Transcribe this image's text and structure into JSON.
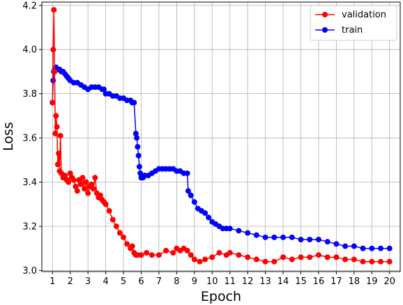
{
  "chart_data": {
    "type": "line",
    "xlabel": "Epoch",
    "ylabel": "Loss",
    "xlim": [
      0.4,
      20.6
    ],
    "ylim": [
      2.995,
      4.215
    ],
    "xticks": [
      1,
      2,
      3,
      4,
      5,
      6,
      7,
      8,
      9,
      10,
      11,
      12,
      13,
      14,
      15,
      16,
      17,
      18,
      19,
      20
    ],
    "yticks": [
      3.0,
      3.2,
      3.4,
      3.6,
      3.8,
      4.0,
      4.2
    ],
    "ytick_labels": [
      "3.0",
      "3.2",
      "3.4",
      "3.6",
      "3.8",
      "4.0",
      "4.2"
    ],
    "grid": true,
    "legend_position": "top-right",
    "series": [
      {
        "name": "validation",
        "color": "#ff0000",
        "marker": "circle",
        "x": [
          1.0,
          1.04,
          1.08,
          1.12,
          1.16,
          1.2,
          1.25,
          1.3,
          1.35,
          1.4,
          1.45,
          1.5,
          1.6,
          1.7,
          1.8,
          1.9,
          2.0,
          2.1,
          2.2,
          2.3,
          2.4,
          2.5,
          2.6,
          2.7,
          2.8,
          2.9,
          3.0,
          3.1,
          3.2,
          3.3,
          3.4,
          3.5,
          3.6,
          3.7,
          3.8,
          3.9,
          4.0,
          4.2,
          4.4,
          4.6,
          4.8,
          5.0,
          5.2,
          5.4,
          5.5,
          5.6,
          5.7,
          5.8,
          6.0,
          6.3,
          6.6,
          7.0,
          7.4,
          7.8,
          8.0,
          8.2,
          8.4,
          8.6,
          8.8,
          9.0,
          9.3,
          9.6,
          10.0,
          10.4,
          10.8,
          11.0,
          11.5,
          12.0,
          12.5,
          13.0,
          13.5,
          14.0,
          14.5,
          15.0,
          15.5,
          16.0,
          16.5,
          17.0,
          17.5,
          18.0,
          18.5,
          19.0,
          19.5,
          20.0
        ],
        "y": [
          3.76,
          4.0,
          4.18,
          3.9,
          3.62,
          3.7,
          3.65,
          3.48,
          3.53,
          3.45,
          3.61,
          3.44,
          3.42,
          3.43,
          3.41,
          3.4,
          3.44,
          3.42,
          3.41,
          3.38,
          3.36,
          3.41,
          3.39,
          3.42,
          3.37,
          3.4,
          3.35,
          3.38,
          3.39,
          3.37,
          3.42,
          3.35,
          3.33,
          3.34,
          3.32,
          3.31,
          3.3,
          3.27,
          3.23,
          3.2,
          3.17,
          3.15,
          3.12,
          3.1,
          3.11,
          3.08,
          3.07,
          3.07,
          3.07,
          3.08,
          3.07,
          3.07,
          3.09,
          3.08,
          3.1,
          3.09,
          3.1,
          3.09,
          3.07,
          3.05,
          3.04,
          3.05,
          3.06,
          3.08,
          3.07,
          3.08,
          3.07,
          3.06,
          3.05,
          3.04,
          3.04,
          3.06,
          3.05,
          3.06,
          3.06,
          3.07,
          3.06,
          3.06,
          3.05,
          3.05,
          3.04,
          3.04,
          3.04,
          3.04
        ]
      },
      {
        "name": "train",
        "color": "#0000ff",
        "marker": "circle",
        "x": [
          1.0,
          1.04,
          1.08,
          1.12,
          1.16,
          1.2,
          1.3,
          1.4,
          1.5,
          1.6,
          1.7,
          1.8,
          1.9,
          2.0,
          2.2,
          2.4,
          2.6,
          2.8,
          3.0,
          3.2,
          3.4,
          3.6,
          3.8,
          3.9,
          4.0,
          4.2,
          4.4,
          4.6,
          4.8,
          5.0,
          5.2,
          5.4,
          5.5,
          5.6,
          5.7,
          5.75,
          5.8,
          5.85,
          5.9,
          5.95,
          6.0,
          6.1,
          6.2,
          6.4,
          6.6,
          6.8,
          7.0,
          7.2,
          7.4,
          7.6,
          7.8,
          8.0,
          8.2,
          8.4,
          8.6,
          8.65,
          8.8,
          9.0,
          9.2,
          9.4,
          9.6,
          9.8,
          10.0,
          10.2,
          10.4,
          10.6,
          10.8,
          11.0,
          11.5,
          12.0,
          12.5,
          13.0,
          13.5,
          14.0,
          14.5,
          15.0,
          15.5,
          16.0,
          16.5,
          17.0,
          17.5,
          18.0,
          18.5,
          19.0,
          19.5,
          20.0
        ],
        "y": [
          3.76,
          3.86,
          3.9,
          3.91,
          3.91,
          3.92,
          3.91,
          3.91,
          3.9,
          3.9,
          3.89,
          3.88,
          3.87,
          3.86,
          3.85,
          3.85,
          3.84,
          3.83,
          3.82,
          3.83,
          3.83,
          3.83,
          3.82,
          3.82,
          3.8,
          3.8,
          3.79,
          3.79,
          3.78,
          3.78,
          3.77,
          3.77,
          3.76,
          3.76,
          3.62,
          3.6,
          3.56,
          3.52,
          3.47,
          3.44,
          3.42,
          3.42,
          3.43,
          3.43,
          3.44,
          3.45,
          3.46,
          3.46,
          3.46,
          3.46,
          3.46,
          3.45,
          3.45,
          3.44,
          3.44,
          3.36,
          3.34,
          3.31,
          3.28,
          3.27,
          3.26,
          3.24,
          3.22,
          3.21,
          3.2,
          3.19,
          3.19,
          3.19,
          3.18,
          3.17,
          3.16,
          3.15,
          3.15,
          3.15,
          3.15,
          3.14,
          3.14,
          3.14,
          3.13,
          3.12,
          3.11,
          3.11,
          3.1,
          3.1,
          3.1,
          3.1
        ]
      }
    ]
  }
}
